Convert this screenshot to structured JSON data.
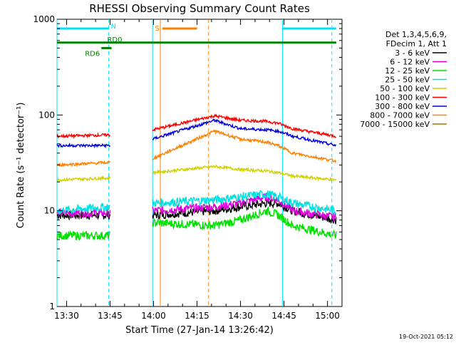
{
  "chart_data": {
    "type": "line",
    "title": "RHESSI Observing Summary Count Rates",
    "xlabel": "Start Time (27-Jan-14 13:26:42)",
    "ylabel": "Count Rate (s⁻¹ detector⁻¹)",
    "yscale": "log",
    "ylim": [
      1,
      1000
    ],
    "xlim": [
      "13:26:42",
      "15:05:00"
    ],
    "x_ticks": [
      "13:30",
      "13:45",
      "14:00",
      "14:15",
      "14:30",
      "14:45",
      "15:00"
    ],
    "y_ticks": [
      "1",
      "10",
      "100",
      "1000"
    ],
    "grid": false,
    "legend_position": "right",
    "legend_header": [
      "Det 1,3,4,5,6,9,",
      "FDecim 1, Att 1"
    ],
    "series": [
      {
        "name": "3 - 6 keV",
        "color": "#000000",
        "x": [
          "13:26:42",
          "13:45:00",
          "13:45:00",
          "13:59:40",
          "14:21:00",
          "14:30:00",
          "14:39:00",
          "14:43:00",
          "14:48:00",
          "15:03:00"
        ],
        "values": [
          9,
          9,
          null,
          9,
          10,
          11,
          12,
          12,
          10,
          8
        ]
      },
      {
        "name": "6 - 12 keV",
        "color": "#e000e0",
        "x": [
          "13:26:42",
          "13:45:00",
          "13:45:00",
          "13:59:40",
          "14:21:00",
          "14:30:00",
          "14:39:00",
          "14:43:00",
          "14:48:00",
          "15:03:00"
        ],
        "values": [
          9.5,
          9.5,
          null,
          10,
          11,
          12,
          14,
          13,
          10,
          8.5
        ]
      },
      {
        "name": "12 - 25 keV",
        "color": "#00e000",
        "x": [
          "13:26:42",
          "13:45:00",
          "13:45:00",
          "13:59:40",
          "14:21:00",
          "14:30:00",
          "14:39:00",
          "14:43:00",
          "14:48:00",
          "15:03:00"
        ],
        "values": [
          5.5,
          5.5,
          null,
          7.5,
          7,
          8,
          10,
          9,
          7,
          5.5
        ]
      },
      {
        "name": "25 - 50 keV",
        "color": "#00e0e0",
        "x": [
          "13:26:42",
          "13:45:00",
          "13:45:00",
          "13:59:40",
          "14:21:00",
          "14:30:00",
          "14:39:00",
          "14:43:00",
          "14:48:00",
          "15:03:00"
        ],
        "values": [
          10,
          11,
          null,
          12,
          13,
          14,
          15,
          14,
          12,
          10
        ]
      },
      {
        "name": "50 - 100 keV",
        "color": "#d0d000",
        "x": [
          "13:26:42",
          "13:45:00",
          "13:45:00",
          "13:59:40",
          "14:21:00",
          "14:30:00",
          "14:39:00",
          "14:43:00",
          "14:48:00",
          "15:03:00"
        ],
        "values": [
          21,
          22,
          null,
          25,
          29,
          27,
          26,
          25,
          23,
          21
        ]
      },
      {
        "name": "100 - 300 keV",
        "color": "#ff0000",
        "x": [
          "13:26:42",
          "13:45:00",
          "13:45:00",
          "13:59:40",
          "14:21:00",
          "14:30:00",
          "14:39:00",
          "14:43:00",
          "14:48:00",
          "15:03:00"
        ],
        "values": [
          60,
          62,
          null,
          70,
          98,
          88,
          86,
          82,
          72,
          60
        ]
      },
      {
        "name": "300 - 800 keV",
        "color": "#0000e0",
        "x": [
          "13:26:42",
          "13:45:00",
          "13:45:00",
          "13:59:40",
          "14:21:00",
          "14:30:00",
          "14:39:00",
          "14:43:00",
          "14:48:00",
          "15:03:00"
        ],
        "values": [
          48,
          48,
          null,
          56,
          88,
          72,
          70,
          68,
          60,
          48
        ]
      },
      {
        "name": "800 - 7000 keV",
        "color": "#ff8000",
        "x": [
          "13:26:42",
          "13:45:00",
          "13:45:00",
          "13:59:40",
          "14:21:00",
          "14:30:00",
          "14:39:00",
          "14:43:00",
          "14:48:00",
          "15:03:00"
        ],
        "values": [
          30,
          32,
          null,
          35,
          68,
          56,
          52,
          48,
          40,
          33
        ]
      },
      {
        "name": "7000 - 15000 keV",
        "color": "#a07800",
        "x": [],
        "values": []
      }
    ],
    "state_bars": [
      {
        "label": "N",
        "color": "#00e0ff",
        "level": 800,
        "segments": [
          [
            "13:26:42",
            "13:44:30"
          ],
          [
            "14:44:30",
            "15:03:00"
          ]
        ]
      },
      {
        "label": "S",
        "color": "#ff8000",
        "level": 800,
        "segments": [
          [
            "14:03:00",
            "14:15:00"
          ]
        ]
      },
      {
        "label": "RD0",
        "color": "#008000",
        "level": 570,
        "segments": [
          [
            "13:26:42",
            "15:03:00"
          ]
        ]
      },
      {
        "label": "RD6",
        "color": "#008000",
        "level": 500,
        "segments": [
          [
            "13:42:00",
            "13:45:30"
          ]
        ]
      }
    ],
    "markers": [
      {
        "time": "13:26:42",
        "color": "#00e0ff",
        "style": "solid"
      },
      {
        "time": "13:44:30",
        "color": "#00e0ff",
        "style": "dashed"
      },
      {
        "time": "13:59:40",
        "color": "#00e0ff",
        "style": "solid"
      },
      {
        "time": "14:02:20",
        "color": "#ff8000",
        "style": "solid"
      },
      {
        "time": "14:19:00",
        "color": "#ff8000",
        "style": "dashed"
      },
      {
        "time": "14:44:30",
        "color": "#00e0ff",
        "style": "solid"
      },
      {
        "time": "15:01:30",
        "color": "#00e0ff",
        "style": "dashed"
      }
    ]
  },
  "footer": {
    "timestamp": "19-Oct-2021 05:12"
  }
}
